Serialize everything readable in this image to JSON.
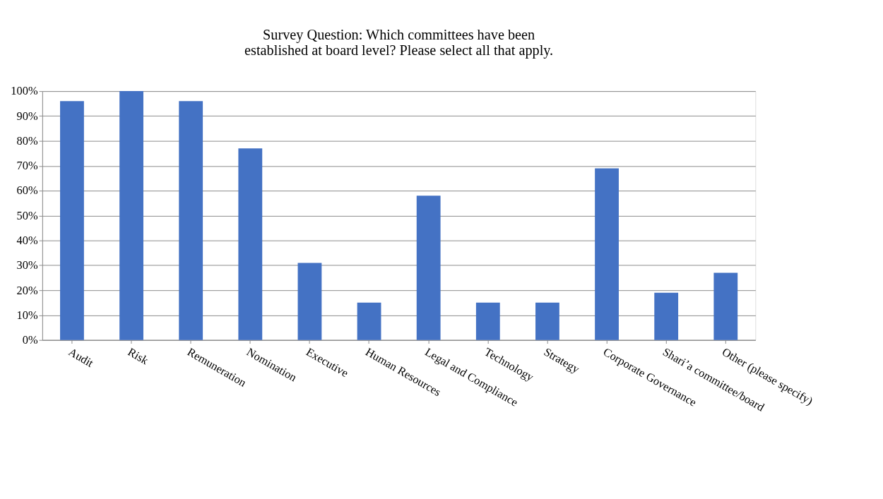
{
  "chart_data": {
    "type": "bar",
    "title": "Survey Question: Which committees have been\nestablished at board level? Please select all that apply.",
    "categories": [
      "Audit",
      "Risk",
      "Remuneration",
      "Nomination",
      "Executive",
      "Human Resources",
      "Legal and Compliance",
      "Technology",
      "Strategy",
      "Corporate Governance",
      "Shari’a committee/board",
      "Other (please specify)"
    ],
    "values": [
      96,
      100,
      96,
      77,
      31,
      15,
      58,
      15,
      15,
      69,
      19,
      27
    ],
    "color": "#4472c4",
    "ylim": [
      0,
      100
    ],
    "yticks": [
      {
        "value": 0,
        "label": "0%"
      },
      {
        "value": 10,
        "label": "10%"
      },
      {
        "value": 20,
        "label": "20%"
      },
      {
        "value": 30,
        "label": "30%"
      },
      {
        "value": 40,
        "label": "40%"
      },
      {
        "value": 50,
        "label": "50%"
      },
      {
        "value": 60,
        "label": "60%"
      },
      {
        "value": 70,
        "label": "70%"
      },
      {
        "value": 80,
        "label": "80%"
      },
      {
        "value": 90,
        "label": "90%"
      },
      {
        "value": 100,
        "label": "100%"
      }
    ],
    "grid": "y"
  }
}
